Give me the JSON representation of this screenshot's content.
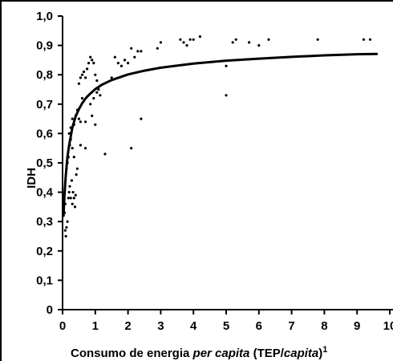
{
  "chart_data": {
    "type": "scatter",
    "title": "",
    "xlabel": {
      "parts": [
        {
          "text": "Consumo de energia ",
          "italic": false
        },
        {
          "text": "per capita",
          "italic": true
        },
        {
          "text": " (TEP/",
          "italic": false
        },
        {
          "text": "capita",
          "italic": true
        },
        {
          "text": ")",
          "italic": false
        },
        {
          "text": "1",
          "italic": false,
          "superscript": true
        }
      ]
    },
    "ylabel": "IDH",
    "xlim": [
      0,
      10
    ],
    "ylim": [
      0,
      1.0
    ],
    "x_ticks": [
      0,
      1,
      2,
      3,
      4,
      5,
      6,
      7,
      8,
      9,
      10
    ],
    "x_tick_labels": [
      "0",
      "1",
      "2",
      "3",
      "4",
      "5",
      "6",
      "7",
      "8",
      "9",
      "10"
    ],
    "y_ticks": [
      0,
      0.1,
      0.2,
      0.3,
      0.4,
      0.5,
      0.6,
      0.7,
      0.8,
      0.9,
      1.0
    ],
    "y_tick_labels": [
      "0",
      "0,1",
      "0,2",
      "0,3",
      "0,4",
      "0,5",
      "0,6",
      "0,7",
      "0,8",
      "0,9",
      "1,0"
    ],
    "grid": false,
    "series": [
      {
        "kind": "points",
        "x": [
          0.06,
          0.08,
          0.1,
          0.12,
          0.15,
          0.08,
          0.18,
          0.2,
          0.22,
          0.25,
          0.28,
          0.3,
          0.32,
          0.35,
          0.38,
          0.4,
          0.42,
          0.45,
          0.12,
          0.18,
          0.22,
          0.25,
          0.3,
          0.35,
          0.15,
          0.2,
          0.25,
          0.3,
          0.35,
          0.4,
          0.45,
          0.5,
          0.55,
          0.6,
          0.5,
          0.55,
          0.6,
          0.65,
          0.7,
          0.75,
          0.8,
          0.85,
          0.9,
          0.95,
          1.0,
          1.05,
          1.1,
          1.15,
          0.7,
          0.9,
          1.0,
          0.55,
          0.7,
          0.85,
          0.95,
          1.05,
          1.3,
          1.5,
          1.6,
          1.7,
          1.8,
          1.9,
          2.0,
          2.1,
          2.2,
          2.3,
          2.4,
          2.1,
          2.4,
          2.9,
          3.0,
          3.6,
          3.7,
          3.8,
          3.9,
          4.0,
          4.2,
          5.0,
          5.2,
          5.3,
          5.7,
          6.0,
          6.3,
          5.0,
          7.8,
          9.2,
          9.4
        ],
        "y": [
          0.33,
          0.27,
          0.25,
          0.28,
          0.3,
          0.36,
          0.38,
          0.4,
          0.42,
          0.38,
          0.44,
          0.36,
          0.4,
          0.38,
          0.35,
          0.39,
          0.46,
          0.48,
          0.48,
          0.52,
          0.56,
          0.58,
          0.55,
          0.52,
          0.5,
          0.6,
          0.62,
          0.65,
          0.63,
          0.66,
          0.68,
          0.65,
          0.64,
          0.72,
          0.77,
          0.79,
          0.8,
          0.81,
          0.79,
          0.82,
          0.84,
          0.86,
          0.85,
          0.84,
          0.8,
          0.78,
          0.75,
          0.73,
          0.64,
          0.66,
          0.63,
          0.56,
          0.55,
          0.7,
          0.72,
          0.74,
          0.53,
          0.79,
          0.86,
          0.84,
          0.83,
          0.85,
          0.84,
          0.89,
          0.86,
          0.88,
          0.65,
          0.55,
          0.88,
          0.89,
          0.91,
          0.92,
          0.91,
          0.9,
          0.92,
          0.92,
          0.93,
          0.73,
          0.91,
          0.92,
          0.91,
          0.9,
          0.92,
          0.83,
          0.92,
          0.92,
          0.92
        ]
      },
      {
        "kind": "fit_curve",
        "x": [
          0.03,
          0.05,
          0.08,
          0.1,
          0.15,
          0.2,
          0.25,
          0.3,
          0.4,
          0.5,
          0.6,
          0.7,
          0.8,
          1.0,
          1.2,
          1.5,
          2.0,
          2.5,
          3.0,
          4.0,
          5.0,
          6.0,
          7.0,
          8.0,
          9.0,
          9.6
        ],
        "y": [
          0.32,
          0.37,
          0.43,
          0.46,
          0.52,
          0.56,
          0.59,
          0.62,
          0.658,
          0.683,
          0.703,
          0.719,
          0.731,
          0.751,
          0.766,
          0.782,
          0.801,
          0.814,
          0.824,
          0.838,
          0.848,
          0.855,
          0.861,
          0.866,
          0.87,
          0.871
        ]
      }
    ]
  }
}
